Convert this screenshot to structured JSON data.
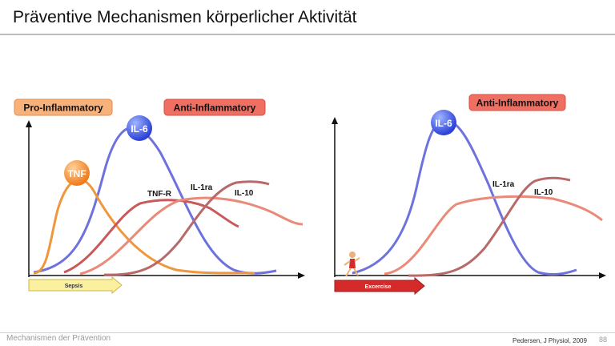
{
  "slide": {
    "title": "Präventive Mechanismen körperlicher Aktivität",
    "footer_left": "Mechanismen der Prävention",
    "citation": "Pedersen, J Physiol, 2009",
    "page_number": "88"
  },
  "left_panel": {
    "pro_label": "Pro-Inflammatory",
    "anti_label": "Anti-Inflammatory",
    "badge_il6": "IL-6",
    "badge_tnf": "TNF",
    "curve_labels": {
      "tnfr": "TNF-R",
      "il1ra": "IL-1ra",
      "il10": "IL-10"
    },
    "arrow_label": "Sepsis"
  },
  "right_panel": {
    "anti_label": "Anti-Inflammatory",
    "badge_il6": "IL-6",
    "curve_labels": {
      "il1ra": "IL-1ra",
      "il10": "IL-10"
    },
    "arrow_label": "Excercise"
  },
  "colors": {
    "il6": "#6e72dc",
    "tnf": "#f0963c",
    "tnfr": "#c85a5a",
    "il1ra": "#e98a7a",
    "il10": "#b86a6a",
    "pro_box": "#f7b17a",
    "anti_box": "#ef6f62",
    "sepsis_arrow": "#fbf0a0",
    "exercise_arrow": "#d42a2a"
  }
}
